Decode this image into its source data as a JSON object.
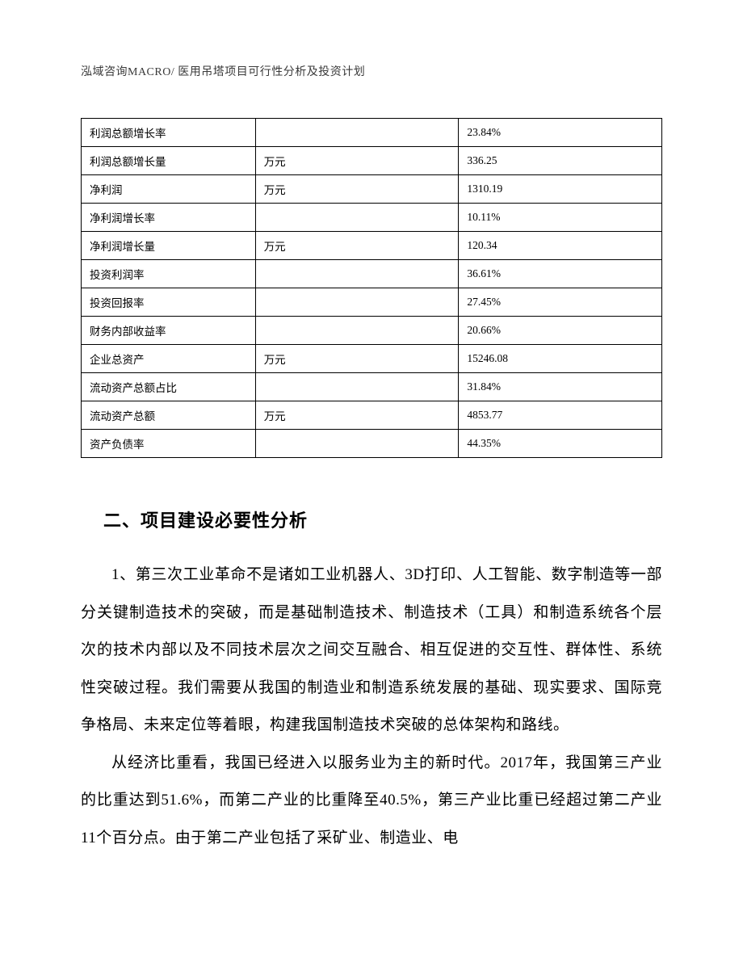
{
  "header": "泓域咨询MACRO/ 医用吊塔项目可行性分析及投资计划",
  "table": {
    "rows": [
      {
        "label": "利润总额增长率",
        "unit": "",
        "value": "23.84%"
      },
      {
        "label": "利润总额增长量",
        "unit": "万元",
        "value": "336.25"
      },
      {
        "label": "净利润",
        "unit": "万元",
        "value": "1310.19"
      },
      {
        "label": "净利润增长率",
        "unit": "",
        "value": "10.11%"
      },
      {
        "label": "净利润增长量",
        "unit": "万元",
        "value": "120.34"
      },
      {
        "label": "投资利润率",
        "unit": "",
        "value": "36.61%"
      },
      {
        "label": "投资回报率",
        "unit": "",
        "value": "27.45%"
      },
      {
        "label": "财务内部收益率",
        "unit": "",
        "value": "20.66%"
      },
      {
        "label": "企业总资产",
        "unit": "万元",
        "value": "15246.08"
      },
      {
        "label": "流动资产总额占比",
        "unit": "",
        "value": "31.84%"
      },
      {
        "label": "流动资产总额",
        "unit": "万元",
        "value": "4853.77"
      },
      {
        "label": "资产负债率",
        "unit": "",
        "value": "44.35%"
      }
    ]
  },
  "section": {
    "heading": "二、项目建设必要性分析",
    "paragraphs": [
      "1、第三次工业革命不是诸如工业机器人、3D打印、人工智能、数字制造等一部分关键制造技术的突破，而是基础制造技术、制造技术（工具）和制造系统各个层次的技术内部以及不同技术层次之间交互融合、相互促进的交互性、群体性、系统性突破过程。我们需要从我国的制造业和制造系统发展的基础、现实要求、国际竞争格局、未来定位等着眼，构建我国制造技术突破的总体架构和路线。",
      "从经济比重看，我国已经进入以服务业为主的新时代。2017年，我国第三产业的比重达到51.6%，而第二产业的比重降至40.5%，第三产业比重已经超过第二产业11个百分点。由于第二产业包括了采矿业、制造业、电"
    ]
  },
  "style": {
    "page_bg": "#ffffff",
    "text_color": "#000000",
    "header_color": "#3a3a3a",
    "border_color": "#000000",
    "header_fontsize": 14,
    "table_fontsize": 13.5,
    "heading_fontsize": 22,
    "body_fontsize": 19,
    "body_lineheight": 2.45,
    "col_widths_pct": [
      30,
      35,
      35
    ]
  }
}
